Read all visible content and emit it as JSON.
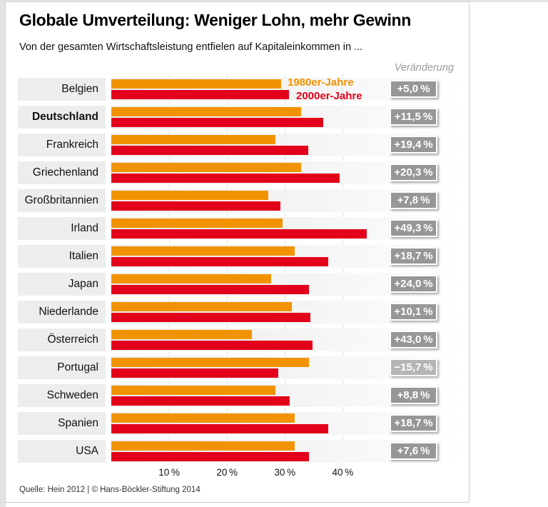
{
  "header": {
    "title": "Globale Umverteilung: Weniger Lohn, mehr Gewinn",
    "subtitle": "Von der gesamten Wirtschaftsleistung entfielen auf Kapitaleinkommen in ...",
    "change_column_label": "Veränderung"
  },
  "legend": {
    "series1_label": "1980er-Jahre",
    "series2_label": "2000er-Jahre"
  },
  "chart_data": {
    "type": "bar",
    "orientation": "horizontal",
    "unit": "%",
    "categories": [
      "Belgien",
      "Deutschland",
      "Frankreich",
      "Griechenland",
      "Großbritannien",
      "Irland",
      "Italien",
      "Japan",
      "Niederlande",
      "Österreich",
      "Portugal",
      "Schweden",
      "Spanien",
      "USA"
    ],
    "bold_categories": [
      "Deutschland"
    ],
    "series": [
      {
        "name": "1980er-Jahre",
        "color": "#f19300",
        "values": [
          29.3,
          32.8,
          28.4,
          32.8,
          27.1,
          29.6,
          31.7,
          27.6,
          31.2,
          24.3,
          34.2,
          28.3,
          31.7,
          31.7
        ]
      },
      {
        "name": "2000er-Jahre",
        "color": "#e2001a",
        "values": [
          30.7,
          36.6,
          34.0,
          39.4,
          29.2,
          44.2,
          37.5,
          34.1,
          34.4,
          34.8,
          28.9,
          30.8,
          37.5,
          34.1
        ]
      }
    ],
    "change_labels": [
      "+5,0 %",
      "+11,5 %",
      "+19,4 %",
      "+20,3 %",
      "+7,8 %",
      "+49,3 %",
      "+18,7 %",
      "+24,0 %",
      "+10,1 %",
      "+43,0 %",
      "−15,7 %",
      "+8,8 %",
      "+18,7 %",
      "+7,6 %"
    ],
    "x_ticks": [
      10,
      20,
      30,
      40
    ],
    "x_tick_labels": [
      "10 %",
      "20 %",
      "30 %",
      "40 %"
    ],
    "xlim": [
      0,
      60.7
    ],
    "grid": true,
    "legend_position": "top-right-of-first-row",
    "change_column_header": "Veränderung"
  },
  "colors": {
    "bar_1980s": "#f19300",
    "bar_2000s": "#e2001a",
    "badge": "#979797",
    "badge_negative": "#b5b5b5",
    "label_box": "#ededed",
    "gridline": "#e2e2e2"
  },
  "footer": {
    "source": "Quelle: Hein 2012 | © Hans-Böckler-Stiftung 2014"
  }
}
